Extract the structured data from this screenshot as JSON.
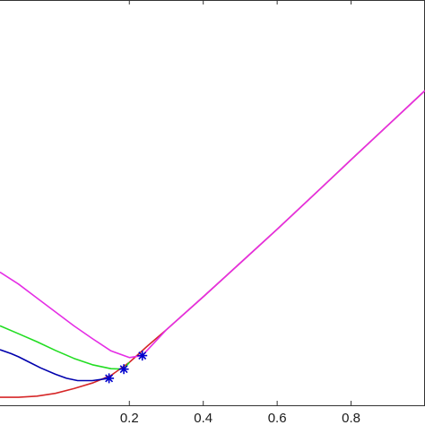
{
  "chart_data": {
    "type": "line",
    "title": "",
    "xlabel": "",
    "ylabel": "",
    "xlim": [
      -0.15,
      1.0
    ],
    "ylim": [
      -0.02,
      1.0
    ],
    "grid": false,
    "x_ticks": [
      {
        "value": 0.2,
        "label": "0.2"
      },
      {
        "value": 0.4,
        "label": "0.4"
      },
      {
        "value": 0.6,
        "label": "0.6"
      },
      {
        "value": 0.8,
        "label": "0.8"
      }
    ],
    "series": [
      {
        "color": "#d62728",
        "x": [
          -0.15,
          -0.1,
          -0.05,
          0.0,
          0.05,
          0.1,
          0.15,
          0.2,
          0.25,
          0.3,
          0.4,
          0.5,
          0.6,
          0.7,
          0.8,
          0.9,
          1.0
        ],
        "y": [
          0.0,
          0.0,
          0.003,
          0.01,
          0.022,
          0.036,
          0.055,
          0.088,
          0.13,
          0.17,
          0.253,
          0.338,
          0.423,
          0.51,
          0.598,
          0.685,
          0.772
        ]
      },
      {
        "color": "#0000ad",
        "x": [
          -0.15,
          -0.12,
          -0.1,
          -0.07,
          -0.04,
          0.0,
          0.03,
          0.06,
          0.1,
          0.145
        ],
        "y": [
          0.12,
          0.11,
          0.102,
          0.088,
          0.074,
          0.058,
          0.048,
          0.042,
          0.042,
          0.048
        ]
      },
      {
        "color": "#22dd22",
        "x": [
          -0.15,
          -0.1,
          -0.05,
          0.0,
          0.05,
          0.1,
          0.15,
          0.185,
          0.2
        ],
        "y": [
          0.18,
          0.16,
          0.14,
          0.118,
          0.098,
          0.082,
          0.072,
          0.071,
          0.088
        ]
      },
      {
        "color": "#e52ee5",
        "x": [
          -0.15,
          -0.1,
          -0.05,
          0.0,
          0.05,
          0.1,
          0.15,
          0.2,
          0.235,
          0.3,
          0.4,
          0.5,
          0.6,
          0.7,
          0.8,
          0.9,
          1.0
        ],
        "y": [
          0.315,
          0.285,
          0.25,
          0.215,
          0.18,
          0.148,
          0.117,
          0.1,
          0.105,
          0.17,
          0.253,
          0.338,
          0.423,
          0.51,
          0.598,
          0.685,
          0.772
        ]
      }
    ],
    "markers": [
      {
        "x": 0.145,
        "y": 0.048
      },
      {
        "x": 0.185,
        "y": 0.071
      },
      {
        "x": 0.235,
        "y": 0.105
      }
    ],
    "marker_color": "#0000cc"
  }
}
